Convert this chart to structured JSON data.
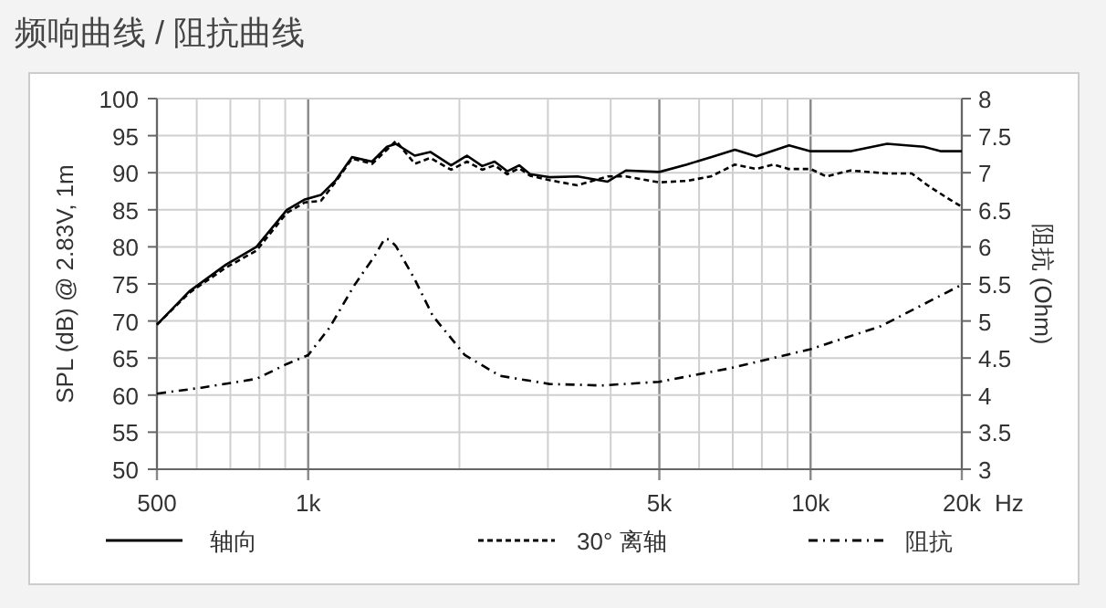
{
  "chart_data": {
    "type": "line",
    "title": "频响曲线 / 阻抗曲线",
    "xlabel": "Hz",
    "ylabel": "SPL (dB) @ 2.83V, 1m",
    "y2label": "阻抗 (Ohm)",
    "log": "x",
    "grid": true,
    "legend": "bottom",
    "marker": "none",
    "xlim": [
      500,
      20000
    ],
    "xticks": [
      500,
      {
        "value": 600,
        "label": null
      },
      {
        "value": 700,
        "label": null
      },
      {
        "value": 800,
        "label": null
      },
      {
        "value": 900,
        "label": null
      },
      {
        "value": 1000,
        "label": "1k"
      },
      {
        "value": 2000,
        "label": null
      },
      {
        "value": 3000,
        "label": null
      },
      {
        "value": 4000,
        "label": null
      },
      {
        "value": 5000,
        "label": "5k"
      },
      {
        "value": 6000,
        "label": null
      },
      {
        "value": 7000,
        "label": null
      },
      {
        "value": 8000,
        "label": null
      },
      {
        "value": 9000,
        "label": null
      },
      {
        "value": 10000,
        "label": "10k"
      },
      {
        "value": 20000,
        "label": "20k"
      }
    ],
    "ylim": [
      50,
      100
    ],
    "yticks": [
      50,
      55,
      60,
      65,
      70,
      75,
      80,
      85,
      90,
      95,
      100
    ],
    "y2lim": [
      3,
      8
    ],
    "y2ticks": [
      3,
      3.5,
      4,
      4.5,
      5,
      5.5,
      6,
      6.5,
      7,
      7.5,
      8
    ],
    "series": [
      {
        "name": "轴向",
        "color": "#000000",
        "line_style": "solid",
        "x": [
          500,
          580,
          686,
          789,
          907,
          985,
          1060,
          1135,
          1222,
          1340,
          1435,
          1495,
          1630,
          1750,
          1925,
          2070,
          2220,
          2350,
          2490,
          2630,
          2765,
          3020,
          3435,
          3945,
          4290,
          5000,
          5670,
          6330,
          7070,
          7800,
          9060,
          10000,
          12000,
          14200,
          16800,
          18200,
          20000
        ],
        "values": [
          69.5,
          74,
          77.6,
          80,
          85,
          86.4,
          87,
          89,
          92.1,
          91.5,
          93.5,
          93.9,
          92.3,
          92.8,
          91,
          92.3,
          90.9,
          91.5,
          90.2,
          91,
          89.8,
          89.4,
          89.5,
          88.8,
          90.3,
          90.1,
          91.1,
          92.1,
          93.1,
          92.2,
          93.7,
          92.9,
          92.9,
          93.9,
          93.5,
          92.9,
          92.9
        ]
      },
      {
        "name": "30° 离轴",
        "color": "#000000",
        "line_style": "dashed",
        "x": [
          500,
          580,
          686,
          789,
          907,
          985,
          1060,
          1135,
          1222,
          1340,
          1435,
          1495,
          1630,
          1750,
          1925,
          2070,
          2220,
          2350,
          2490,
          2630,
          2765,
          3020,
          3435,
          3945,
          4290,
          5000,
          5670,
          6330,
          7070,
          7800,
          8440,
          9060,
          10000,
          10750,
          12000,
          14200,
          15900,
          17100,
          18600,
          20000
        ],
        "values": [
          69.5,
          73.8,
          77.2,
          79.5,
          84.6,
          86,
          86.2,
          88.8,
          91.9,
          91.2,
          93.1,
          94.3,
          91.2,
          92,
          90.4,
          91.5,
          90.4,
          91,
          89.8,
          90.6,
          89.6,
          89,
          88.3,
          89.5,
          89.5,
          88.7,
          88.9,
          89.5,
          91.1,
          90.5,
          91.1,
          90.5,
          90.5,
          89.5,
          90.3,
          89.9,
          89.9,
          88.3,
          86.7,
          85.4
        ]
      },
      {
        "name": "阻抗",
        "color": "#000000",
        "line_style": "dashdot",
        "axis": "y2",
        "x": [
          500,
          613,
          789,
          907,
          1000,
          1103,
          1235,
          1360,
          1420,
          1450,
          1495,
          1630,
          1770,
          2050,
          2410,
          3020,
          3840,
          5000,
          6890,
          10000,
          13800,
          20000
        ],
        "values": [
          4.02,
          4.1,
          4.22,
          4.42,
          4.54,
          4.91,
          5.48,
          5.89,
          6.11,
          6.1,
          6.01,
          5.56,
          5.07,
          4.54,
          4.26,
          4.15,
          4.13,
          4.18,
          4.36,
          4.62,
          4.93,
          5.49
        ]
      }
    ]
  }
}
